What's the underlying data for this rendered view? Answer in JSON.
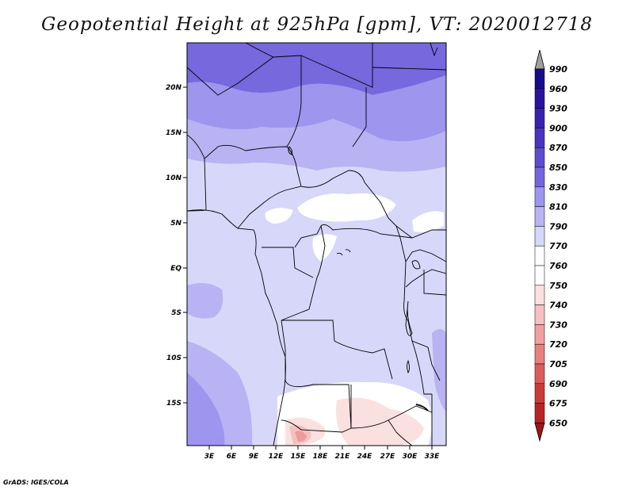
{
  "title": "Geopotential Height at 925hPa [gpm], VT: 2020012718",
  "footer": "GrADS: IGES/COLA",
  "map": {
    "lat_labels": [
      "20N",
      "15N",
      "10N",
      "5N",
      "EQ",
      "5S",
      "10S",
      "15S"
    ],
    "lon_labels": [
      "3E",
      "6E",
      "9E",
      "12E",
      "15E",
      "18E",
      "21E",
      "24E",
      "27E",
      "30E",
      "33E"
    ]
  },
  "colorbar": {
    "levels": [
      "990",
      "960",
      "930",
      "900",
      "870",
      "850",
      "830",
      "810",
      "790",
      "770",
      "760",
      "750",
      "740",
      "730",
      "720",
      "705",
      "690",
      "675",
      "650"
    ],
    "colors": {
      "deep_blue": "#2a0f9e",
      "mid_blue": "#6a5ad8",
      "light_blue": "#9c93ec",
      "pale_blue": "#b8b2f2",
      "paler_blue": "#d7d7fa",
      "white": "#ffffff",
      "pale_red": "#fbe0e0",
      "mid_red": "#ef9090",
      "deep_red": "#b01515"
    }
  }
}
